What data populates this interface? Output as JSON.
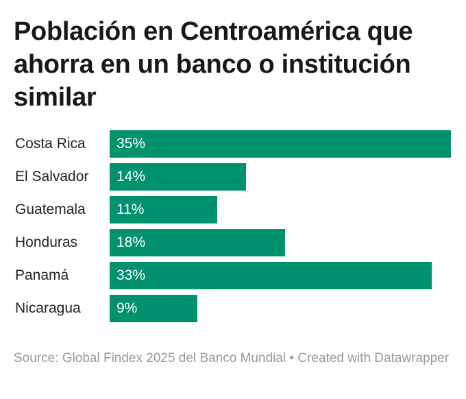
{
  "chart_data": {
    "type": "bar",
    "orientation": "horizontal",
    "title": "Población en Centroamérica que ahorra en un banco o institución similar",
    "categories": [
      "Costa Rica",
      "El Salvador",
      "Guatemala",
      "Honduras",
      "Panamá",
      "Nicaragua"
    ],
    "values": [
      35,
      14,
      11,
      18,
      33,
      9
    ],
    "labels": [
      "35%",
      "14%",
      "11%",
      "18%",
      "33%",
      "9%"
    ],
    "unit": "%",
    "xlim": [
      0,
      35
    ],
    "bar_color": "#00916f",
    "grid": false
  },
  "footer": "Source: Global Findex 2025 del Banco Mundial • Created with Datawrapper"
}
